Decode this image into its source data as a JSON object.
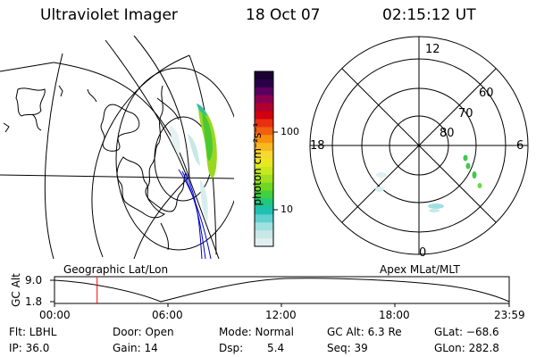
{
  "header": {
    "instrument": "Ultraviolet Imager",
    "date": "18 Oct 07",
    "time": "02:15:12 UT"
  },
  "colorbar": {
    "unit_label": "photon cm⁻²s⁻¹",
    "ticks": [
      "100",
      "10"
    ],
    "colors": [
      "#1a0030",
      "#2a0048",
      "#5a0060",
      "#8a0050",
      "#b00030",
      "#d00010",
      "#e83010",
      "#f06010",
      "#f89010",
      "#f8b820",
      "#f8d830",
      "#e8e820",
      "#c8e820",
      "#a0e020",
      "#70d820",
      "#40d040",
      "#20c880",
      "#20c0b0",
      "#60d0d0",
      "#a0e0e0",
      "#c8e8e8",
      "#e0f0f0"
    ]
  },
  "map_left": {
    "projection_label": "Geographic Lat/Lon"
  },
  "map_right": {
    "projection_label": "Apex MLat/MLT",
    "mlt_labels": {
      "top": "12",
      "left": "18",
      "right": "6",
      "bottom": "0"
    },
    "lat_labels": [
      "60",
      "70",
      "80"
    ]
  },
  "timeline": {
    "ylabel": "GC Alt",
    "yticks": [
      "9.0",
      "1.8"
    ],
    "xticks": [
      "00:00",
      "06:00",
      "12:00",
      "18:00",
      "23:59"
    ],
    "marker_time": "02:15",
    "marker_color": "#ff0000"
  },
  "status": {
    "flt": "Flt: LBHL",
    "door": "Door: Open",
    "mode": "Mode: Normal",
    "gc_alt": "GC Alt: 6.3 Re",
    "glat": "GLat: −68.6",
    "ip": "IP: 36.0",
    "gain": "Gain: 14",
    "dsp_label": "Dsp:",
    "dsp_value": "5.4",
    "seq": "Seq: 39",
    "glon": "GLon: 282.8"
  }
}
